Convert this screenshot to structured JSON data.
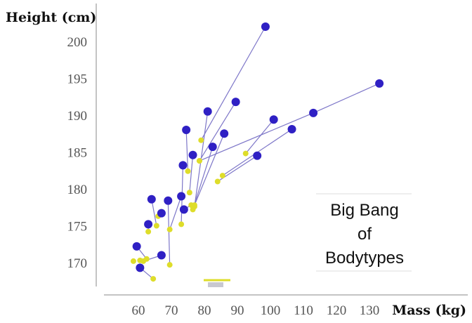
{
  "chart_data": {
    "type": "scatter",
    "xlabel": "Mass (kg)",
    "ylabel": "Height (cm)",
    "xlim": [
      50,
      140
    ],
    "ylim": [
      167.5,
      206
    ],
    "x_ticks": [
      60,
      70,
      80,
      90,
      100,
      110,
      120,
      130
    ],
    "y_ticks": [
      170,
      175,
      180,
      185,
      190,
      195,
      200
    ],
    "grid": false,
    "annotation": [
      "Big Bang",
      "of",
      "Bodytypes"
    ],
    "colors": {
      "blue": "#2f20c4",
      "yellow": "#dedd2a",
      "line": "#7d76c8",
      "axis": "#888888"
    },
    "pairs": [
      {
        "from": [
          64.5,
          167.8
        ],
        "to": [
          60.5,
          169.3
        ]
      },
      {
        "from": [
          62.5,
          170.5
        ],
        "to": [
          59.5,
          172.2
        ]
      },
      {
        "from": [
          61.5,
          170.2
        ],
        "to": [
          67.0,
          171.0
        ]
      },
      {
        "from": [
          63.0,
          174.2
        ],
        "to": [
          63.0,
          175.2
        ]
      },
      {
        "from": [
          65.5,
          175.0
        ],
        "to": [
          64.0,
          178.6
        ]
      },
      {
        "from": [
          69.5,
          169.7
        ],
        "to": [
          69.0,
          178.4
        ]
      },
      {
        "from": [
          69.5,
          174.5
        ],
        "to": [
          73.0,
          179.0
        ]
      },
      {
        "from": [
          73.0,
          175.2
        ],
        "to": [
          73.5,
          183.2
        ]
      },
      {
        "from": [
          75.0,
          182.4
        ],
        "to": [
          74.5,
          188.0
        ]
      },
      {
        "from": [
          75.5,
          179.5
        ],
        "to": [
          76.5,
          184.6
        ]
      },
      {
        "from": [
          76.0,
          177.8
        ],
        "to": [
          73.8,
          177.2
        ]
      },
      {
        "from": [
          76.5,
          177.2
        ],
        "to": [
          82.5,
          185.7
        ]
      },
      {
        "from": [
          77.0,
          177.8
        ],
        "to": [
          86.0,
          187.5
        ]
      },
      {
        "from": [
          77.0,
          177.6
        ],
        "to": [
          81.0,
          190.5
        ]
      },
      {
        "from": [
          78.5,
          183.8
        ],
        "to": [
          89.5,
          191.8
        ]
      },
      {
        "from": [
          79.0,
          186.6
        ],
        "to": [
          98.5,
          202.0
        ]
      },
      {
        "from": [
          78.5,
          183.8
        ],
        "to": [
          113.0,
          190.3
        ]
      },
      {
        "from": [
          85.5,
          181.8
        ],
        "to": [
          106.5,
          188.1
        ]
      },
      {
        "from": [
          92.5,
          184.8
        ],
        "to": [
          101.0,
          189.4
        ]
      },
      {
        "from": [
          84.0,
          181.0
        ],
        "to": [
          96.0,
          184.5
        ]
      },
      {
        "from": [
          113.0,
          190.3
        ],
        "to": [
          133.0,
          194.3
        ]
      },
      {
        "from": [
          66.0,
          176.3
        ],
        "to": [
          67.0,
          176.7
        ]
      }
    ],
    "extra_points": [
      {
        "x": 58.5,
        "y": 170.2,
        "color": "yellow"
      },
      {
        "x": 60.5,
        "y": 170.3,
        "color": "yellow"
      }
    ]
  }
}
